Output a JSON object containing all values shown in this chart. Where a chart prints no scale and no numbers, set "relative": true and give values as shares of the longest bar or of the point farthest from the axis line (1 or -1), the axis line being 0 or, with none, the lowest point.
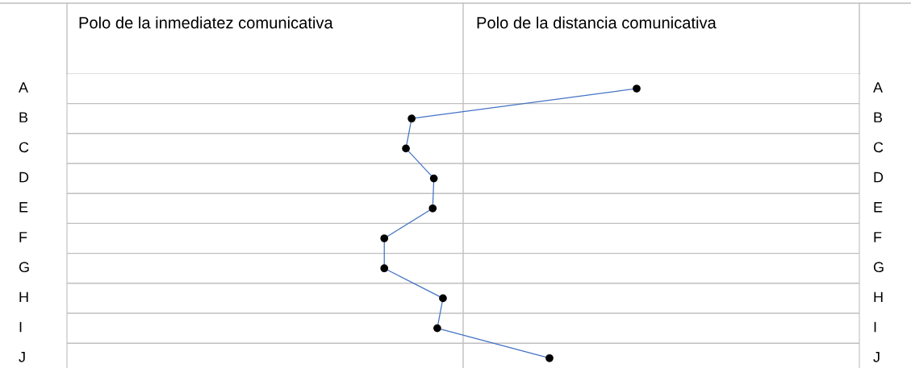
{
  "chart_data": {
    "type": "line",
    "orientation": "horizontal",
    "relative": true,
    "categories": [
      "A",
      "B",
      "C",
      "D",
      "E",
      "F",
      "G",
      "H",
      "I",
      "J"
    ],
    "series": [
      {
        "color": "#4472c4",
        "values": [
          1,
          0.605,
          0.595,
          0.644,
          0.642,
          0.557,
          0.557,
          0.66,
          0.65,
          0.847
        ]
      }
    ],
    "marker": "circle",
    "grid": true,
    "tick_labels": "y",
    "legend": false,
    "annotations": [
      "Polo de la inmediatez comunicativa",
      "Polo de la distancia comunicativa"
    ]
  }
}
